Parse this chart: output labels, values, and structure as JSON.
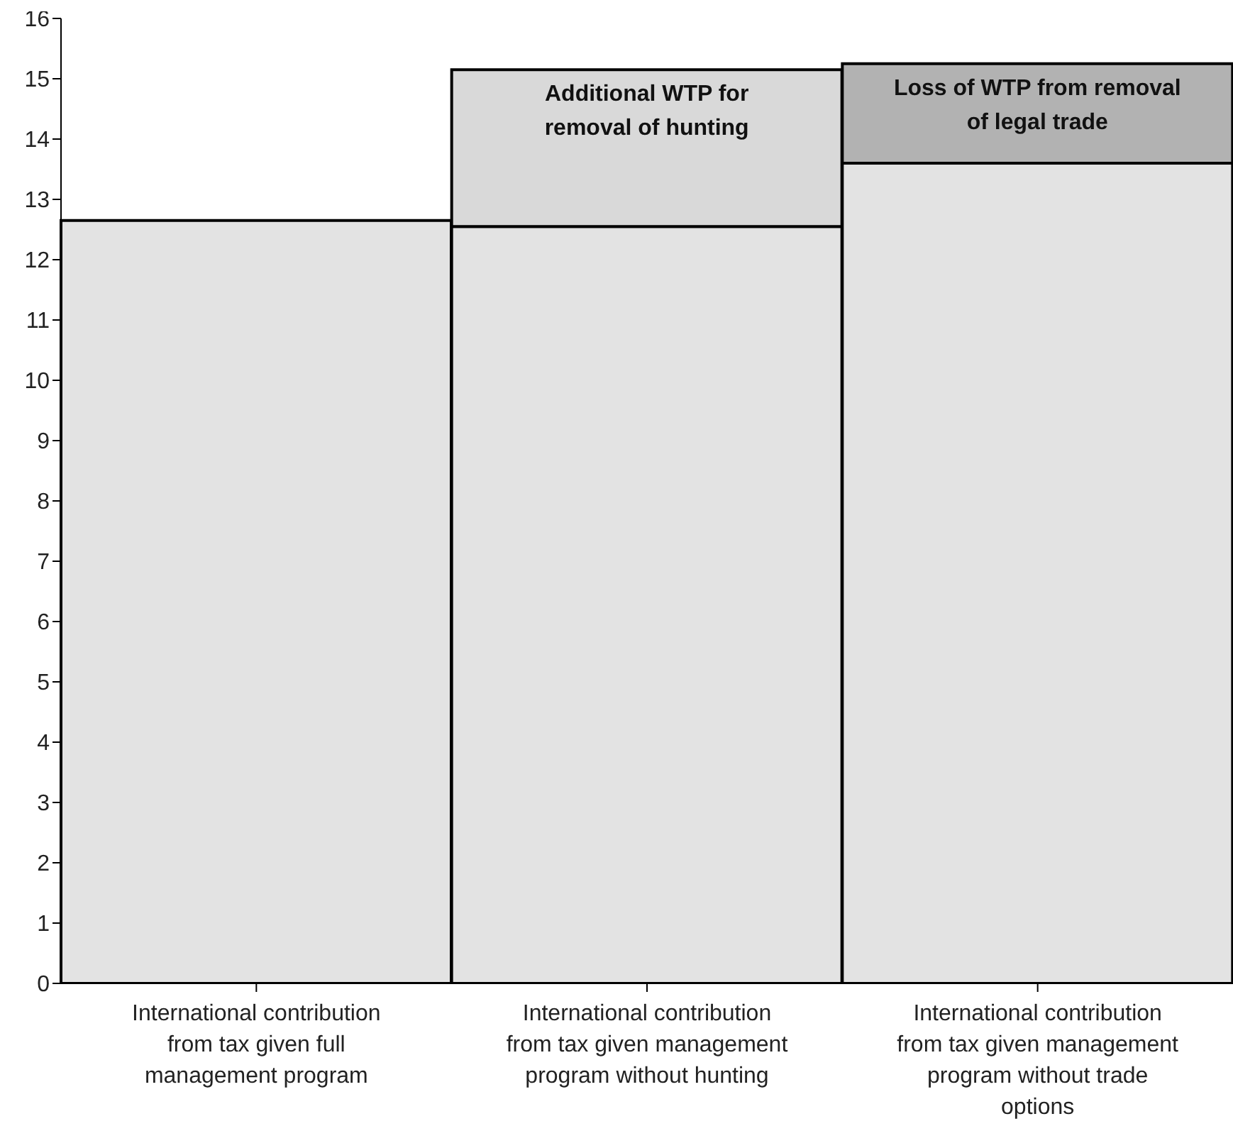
{
  "chart_data": {
    "type": "bar",
    "stacked": true,
    "categories": [
      "International contribution from tax given full management program",
      "International contribution from tax given management program without hunting",
      "International contribution from tax given management program without trade options"
    ],
    "series": [
      {
        "color": "#e3e3e3",
        "values": [
          12.65,
          12.55,
          13.6
        ]
      },
      {
        "name": "Additional WTP for removal of hunting",
        "color": "#d9d9d9",
        "values": [
          null,
          2.6,
          null
        ]
      },
      {
        "name": "Loss of WTP from removal of legal trade",
        "color": "#b2b2b2",
        "values": [
          null,
          null,
          1.65
        ]
      }
    ],
    "ylim": [
      0,
      16
    ],
    "yticks": [
      0,
      1,
      2,
      3,
      4,
      5,
      6,
      7,
      8,
      9,
      10,
      11,
      12,
      13,
      14,
      15,
      16
    ],
    "grid": false,
    "legend": false
  }
}
